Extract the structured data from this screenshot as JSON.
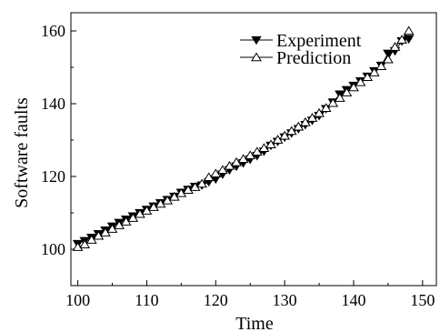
{
  "chart_data": {
    "type": "line",
    "title": "",
    "xlabel": "Time",
    "ylabel": "Software faults",
    "xlim": [
      99,
      152
    ],
    "ylim": [
      90,
      165
    ],
    "xticks": [
      100,
      110,
      120,
      130,
      140,
      150
    ],
    "yticks": [
      100,
      120,
      140,
      160
    ],
    "x_tick_labels": [
      "100",
      "110",
      "120",
      "130",
      "140",
      "150"
    ],
    "y_tick_labels": [
      "100",
      "120",
      "140",
      "160"
    ],
    "grid": false,
    "legend_position": "top-right",
    "x": [
      100,
      101,
      102,
      103,
      104,
      105,
      106,
      107,
      108,
      109,
      110,
      111,
      112,
      113,
      114,
      115,
      116,
      117,
      118,
      119,
      120,
      121,
      122,
      123,
      124,
      125,
      126,
      127,
      128,
      129,
      130,
      131,
      132,
      133,
      134,
      135,
      136,
      137,
      138,
      139,
      140,
      141,
      142,
      143,
      144,
      145,
      146,
      147,
      148
    ],
    "series": [
      {
        "name": "Experiment",
        "marker": "filled-down-triangle",
        "color": "#000000",
        "values": [
          101.5,
          102.3,
          103.2,
          104.2,
          105.2,
          106.3,
          107.3,
          108.2,
          109.1,
          110.0,
          110.9,
          111.8,
          112.7,
          113.6,
          114.5,
          115.6,
          116.4,
          117.2,
          117.6,
          118.5,
          119.3,
          120.6,
          121.8,
          122.8,
          123.7,
          124.7,
          125.7,
          126.9,
          128.5,
          129.6,
          130.8,
          131.9,
          133.1,
          134.2,
          135.4,
          136.7,
          138.6,
          140.4,
          142.6,
          143.8,
          145.0,
          146.2,
          147.5,
          149.0,
          150.5,
          153.8,
          154.5,
          157.2,
          157.8
        ]
      },
      {
        "name": "Prediction",
        "marker": "open-up-triangle",
        "color": "#000000",
        "values": [
          100.6,
          101.3,
          102.6,
          103.7,
          104.6,
          105.6,
          106.6,
          107.6,
          108.6,
          109.7,
          110.6,
          111.6,
          112.5,
          113.4,
          114.4,
          115.4,
          116.3,
          117.1,
          118.0,
          119.8,
          120.8,
          121.8,
          122.9,
          123.9,
          124.8,
          125.8,
          126.8,
          127.8,
          128.8,
          130.1,
          131.2,
          132.5,
          133.7,
          134.9,
          136.1,
          137.4,
          138.8,
          140.2,
          141.6,
          143.1,
          144.5,
          145.9,
          147.3,
          148.6,
          150.3,
          152.2,
          155.6,
          157.6,
          160.0
        ]
      }
    ]
  }
}
